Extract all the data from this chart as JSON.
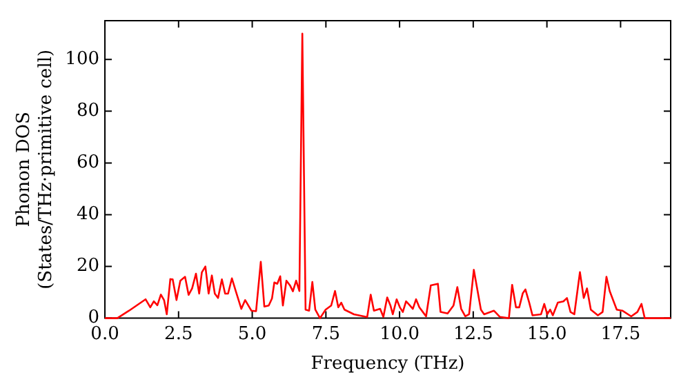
{
  "chart_data": {
    "type": "line",
    "xlabel": "Frequency (THz)",
    "ylabel": "Phonon DOS\n(States/THz·primitive cell)",
    "xlim": [
      0,
      19.2
    ],
    "ylim": [
      0,
      115
    ],
    "xticks": [
      {
        "value": 0,
        "label": "0.0"
      },
      2.5,
      {
        "value": 5,
        "label": "5.0"
      },
      7.5,
      {
        "value": 10,
        "label": "10.0"
      },
      12.5,
      {
        "value": 15,
        "label": "15.0"
      },
      17.5
    ],
    "yticks": [
      0,
      20,
      40,
      60,
      80,
      100
    ],
    "grid": false,
    "legend": false,
    "marker": "none",
    "line_style": "solid",
    "series": [
      {
        "color": "#ff0000",
        "x": [
          0,
          0.42,
          0.82,
          1.38,
          1.54,
          1.66,
          1.78,
          1.9,
          2.01,
          2.1,
          2.22,
          2.3,
          2.43,
          2.56,
          2.72,
          2.84,
          2.96,
          3.09,
          3.2,
          3.29,
          3.41,
          3.52,
          3.63,
          3.73,
          3.84,
          3.97,
          4.08,
          4.18,
          4.31,
          4.44,
          4.63,
          4.76,
          4.97,
          5.13,
          5.29,
          5.41,
          5.56,
          5.67,
          5.75,
          5.85,
          5.95,
          6.04,
          6.16,
          6.28,
          6.38,
          6.49,
          6.6,
          6.7,
          6.81,
          6.93,
          7.04,
          7.14,
          7.3,
          7.49,
          7.68,
          7.81,
          7.92,
          8.02,
          8.13,
          8.45,
          8.9,
          9.02,
          9.13,
          9.34,
          9.45,
          9.58,
          9.69,
          9.77,
          9.9,
          10.01,
          10.11,
          10.22,
          10.35,
          10.45,
          10.56,
          10.67,
          10.79,
          10.9,
          11.06,
          11.3,
          11.39,
          11.63,
          11.83,
          11.96,
          12.09,
          12.23,
          12.36,
          12.52,
          12.76,
          12.87,
          13.2,
          13.4,
          13.71,
          13.82,
          13.95,
          14.06,
          14.18,
          14.27,
          14.4,
          14.51,
          14.8,
          14.91,
          15.01,
          15.11,
          15.2,
          15.37,
          15.56,
          15.68,
          15.8,
          15.93,
          16.12,
          16.25,
          16.36,
          16.49,
          16.73,
          16.89,
          17.02,
          17.13,
          17.37,
          17.56,
          17.86,
          18.07,
          18.21,
          18.32,
          19.2
        ],
        "values": [
          0,
          0,
          2.9,
          7.3,
          4.2,
          6.5,
          5,
          9.1,
          6.9,
          1.5,
          15.1,
          15,
          7,
          14.5,
          16,
          9,
          11.5,
          17.2,
          9.5,
          17.7,
          20,
          9.5,
          16.5,
          9.5,
          7.8,
          15,
          9.5,
          9.5,
          15.4,
          10.5,
          3.6,
          7,
          2.9,
          2.7,
          21.8,
          4.5,
          4.9,
          7.6,
          13.8,
          13.3,
          16.2,
          4.9,
          14.5,
          12.7,
          10.4,
          14.5,
          10.5,
          110,
          3.3,
          2.9,
          14,
          3.3,
          0,
          3.3,
          4.9,
          10.5,
          4.2,
          6,
          3.3,
          1.5,
          0.4,
          9.1,
          2.9,
          3.6,
          0.5,
          8,
          4.9,
          1.5,
          7.3,
          4.2,
          2.4,
          6.5,
          4.9,
          3.6,
          7.3,
          4.2,
          2.4,
          0.7,
          12.7,
          13.3,
          2.4,
          1.8,
          4.9,
          12,
          3.6,
          0.7,
          1.5,
          18.7,
          3.3,
          1.5,
          2.9,
          0.5,
          0,
          12.9,
          4.2,
          4.2,
          9.6,
          11.1,
          6,
          1.1,
          1.5,
          5.5,
          1.5,
          3.3,
          1.1,
          6,
          6.5,
          7.8,
          2.4,
          1.5,
          17.8,
          7.8,
          11.5,
          3.3,
          1.1,
          2.4,
          16,
          10.5,
          3.3,
          2.9,
          0.7,
          2.4,
          5.5,
          0,
          0
        ]
      }
    ]
  }
}
